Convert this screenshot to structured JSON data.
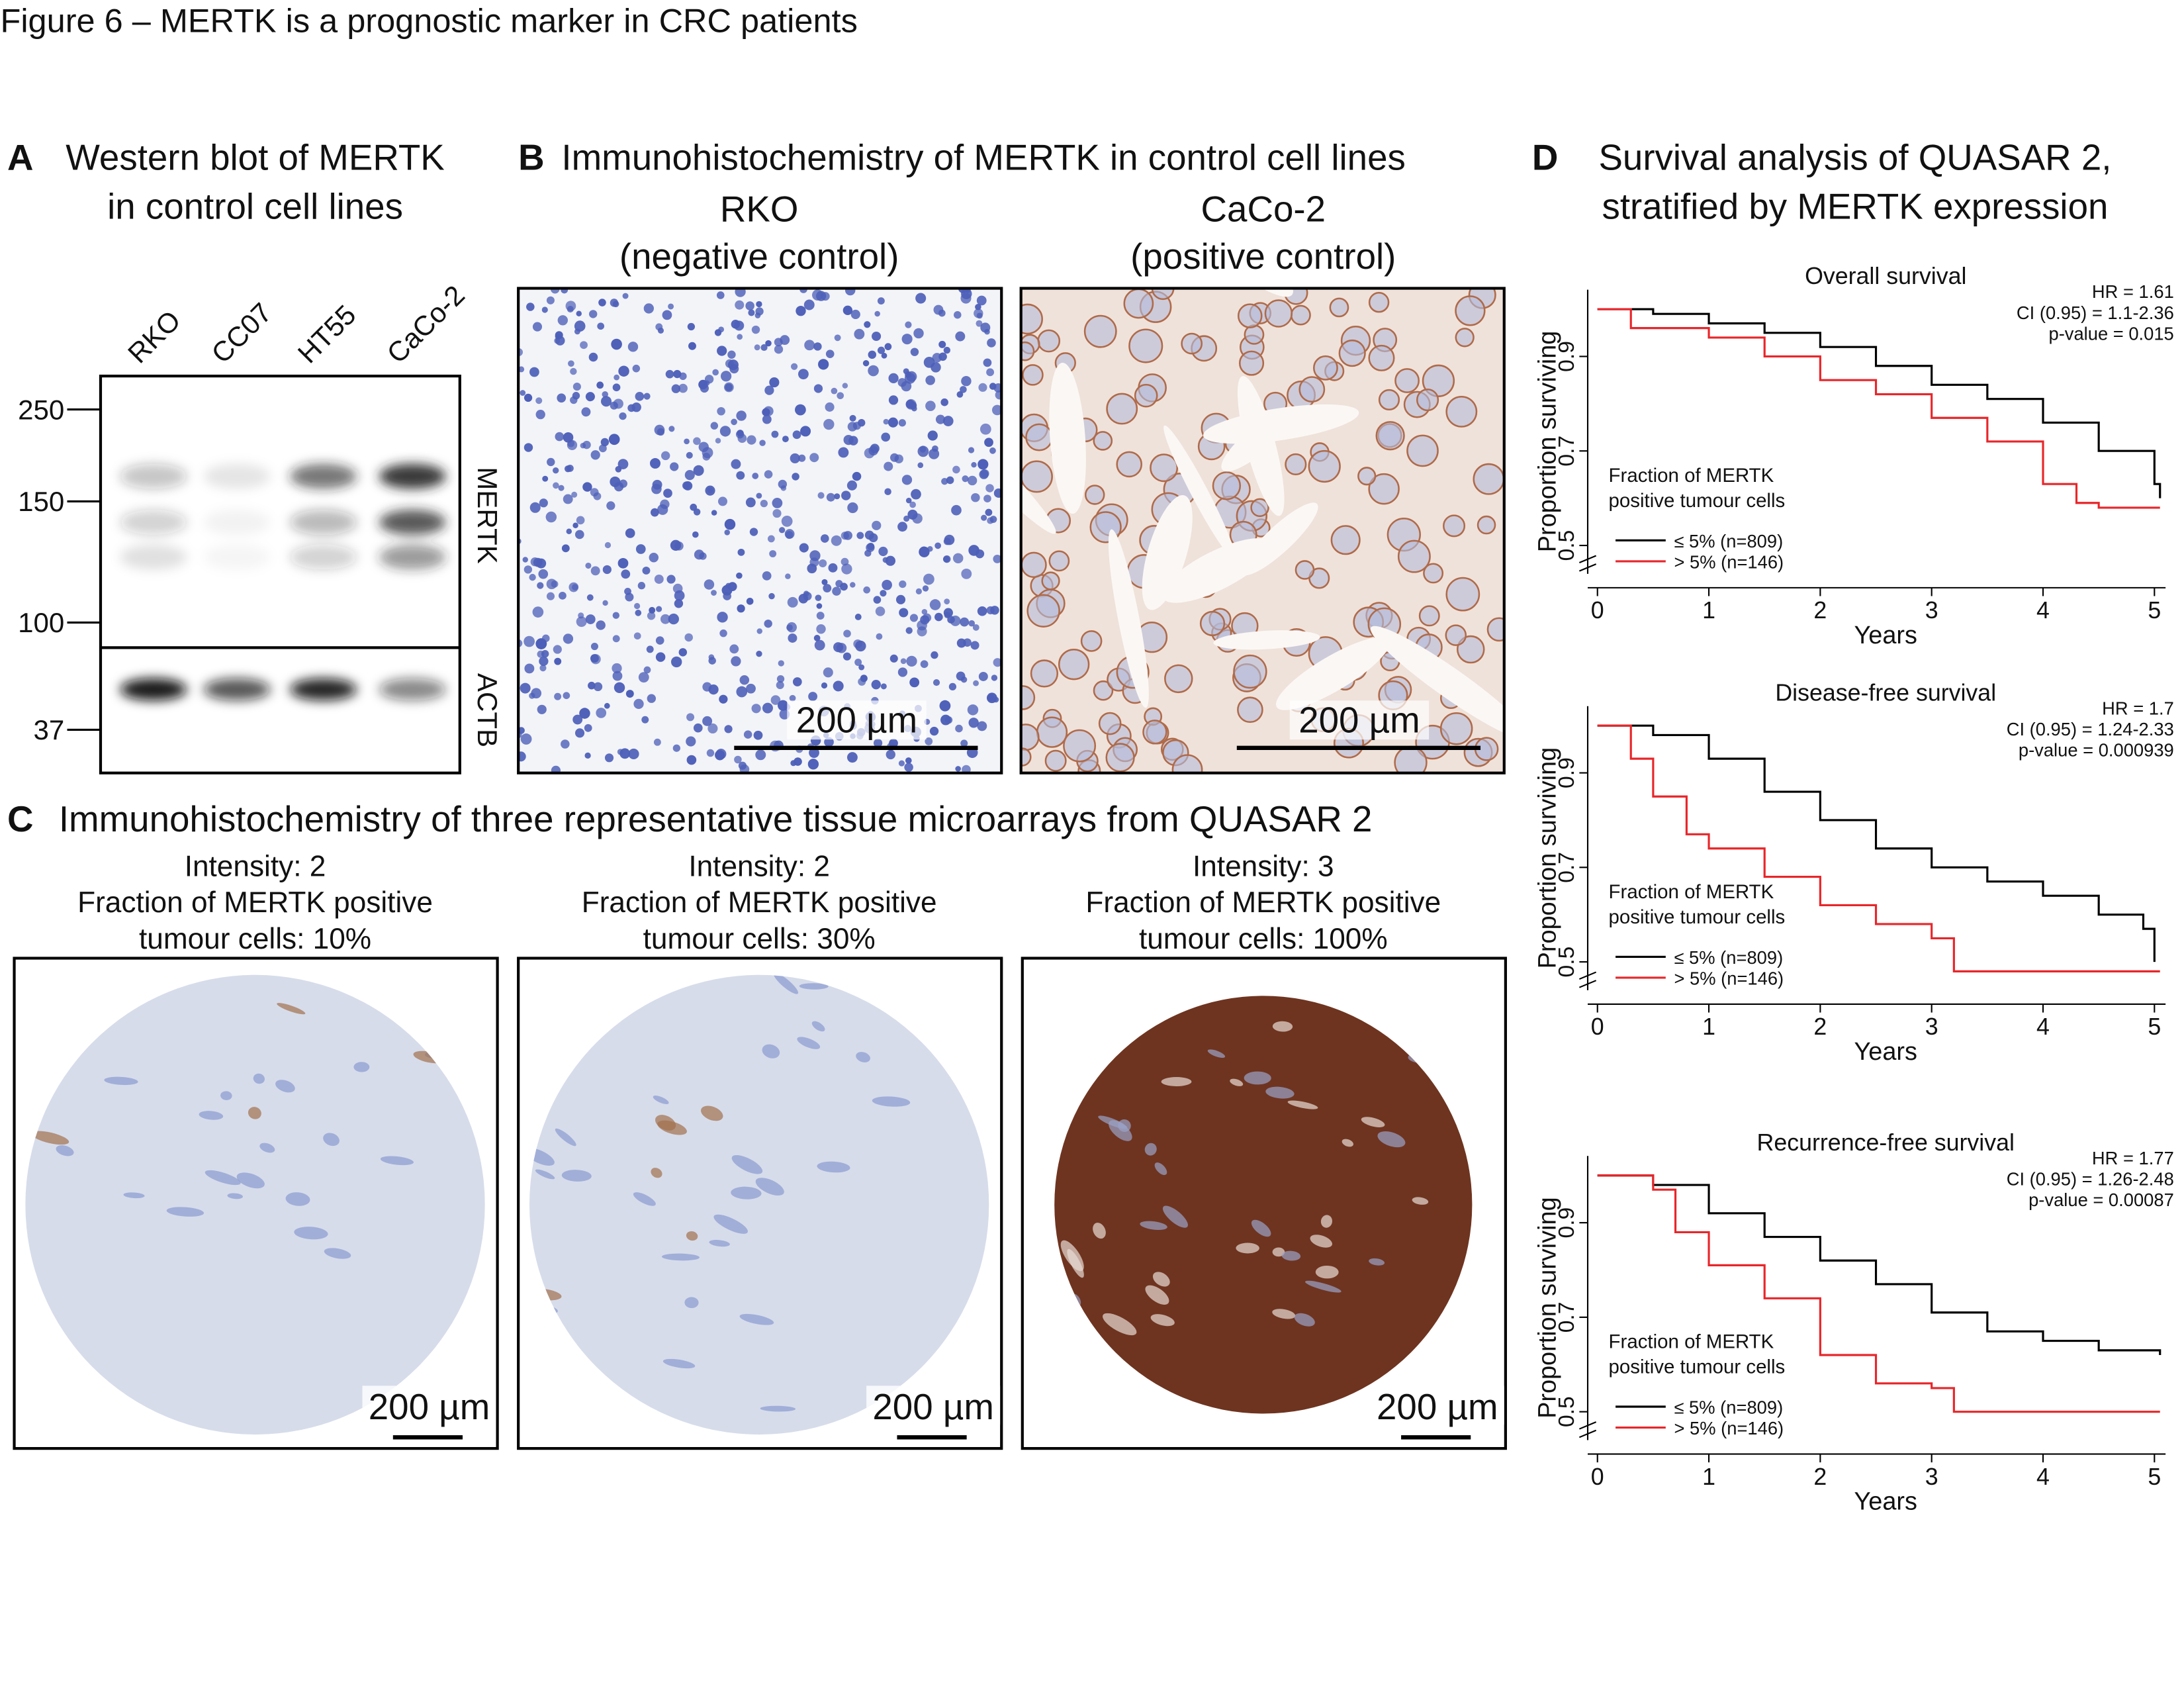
{
  "title": "Figure 6 – MERTK is a prognostic marker in CRC patients",
  "panel_a": {
    "letter": "A",
    "title_lines": [
      "Western blot of MERTK",
      "in control cell lines"
    ],
    "lanes": [
      "RKO",
      "CC07",
      "HT55",
      "CaCo-2"
    ],
    "markers": [
      250,
      150,
      100,
      37
    ],
    "blots": [
      "MERTK",
      "ACTB"
    ]
  },
  "panel_b": {
    "letter": "B",
    "title": "Immunohistochemistry of MERTK in control cell lines",
    "images": [
      {
        "label_lines": [
          "RKO",
          "(negative control)"
        ],
        "scale": "200 µm"
      },
      {
        "label_lines": [
          "CaCo-2",
          "(positive control)"
        ],
        "scale": "200 µm"
      }
    ]
  },
  "panel_c": {
    "letter": "C",
    "title": "Immunohistochemistry of three representative tissue microarrays from QUASAR 2",
    "images": [
      {
        "label_lines": [
          "Intensity: 2",
          "Fraction of MERTK positive",
          "tumour cells: 10%"
        ],
        "scale": "200 µm"
      },
      {
        "label_lines": [
          "Intensity: 2",
          "Fraction of MERTK positive",
          "tumour cells: 30%"
        ],
        "scale": "200 µm"
      },
      {
        "label_lines": [
          "Intensity: 3",
          "Fraction of MERTK positive",
          "tumour cells: 100%"
        ],
        "scale": "200 µm"
      }
    ]
  },
  "panel_d": {
    "letter": "D",
    "title_lines": [
      "Survival analysis of QUASAR 2,",
      "stratified by MERTK expression"
    ]
  },
  "chart_data": [
    {
      "type": "line",
      "title": "Overall survival",
      "xlabel": "Years",
      "ylabel": "Proportion surviving",
      "xlim": [
        0,
        5.1
      ],
      "ylim": [
        0.44,
        1.0
      ],
      "xticks": [
        0,
        1,
        2,
        3,
        4,
        5
      ],
      "yticks": [
        0.5,
        0.7,
        0.9
      ],
      "annotations": [
        "HR = 1.61",
        "CI (0.95) = 1.1-2.36",
        "p-value = 0.015"
      ],
      "legend_title_lines": [
        "Fraction of MERTK",
        "positive tumour cells"
      ],
      "series": [
        {
          "name": "≤ 5% (n=809)",
          "color": "#000000",
          "x": [
            0,
            0.5,
            1,
            1.5,
            2,
            2.5,
            3,
            3.5,
            4,
            4.5,
            5,
            5.05
          ],
          "values": [
            1.0,
            0.99,
            0.97,
            0.95,
            0.92,
            0.88,
            0.84,
            0.81,
            0.76,
            0.7,
            0.63,
            0.6
          ]
        },
        {
          "name": "> 5% (n=146)",
          "color": "#e8262a",
          "x": [
            0,
            0.3,
            1,
            1.5,
            2,
            2.5,
            3,
            3.5,
            4,
            4.3,
            4.5,
            5.05
          ],
          "values": [
            1.0,
            0.96,
            0.94,
            0.9,
            0.85,
            0.82,
            0.77,
            0.72,
            0.63,
            0.59,
            0.58,
            0.58
          ]
        }
      ]
    },
    {
      "type": "line",
      "title": "Disease-free survival",
      "xlabel": "Years",
      "ylabel": "Proportion surviving",
      "xlim": [
        0,
        5.1
      ],
      "ylim": [
        0.44,
        1.0
      ],
      "xticks": [
        0,
        1,
        2,
        3,
        4,
        5
      ],
      "yticks": [
        0.5,
        0.7,
        0.9
      ],
      "annotations": [
        "HR = 1.7",
        "CI (0.95) = 1.24-2.33",
        "p-value = 0.000939"
      ],
      "legend_title_lines": [
        "Fraction of MERTK",
        "positive tumour cells"
      ],
      "series": [
        {
          "name": "≤ 5% (n=809)",
          "color": "#000000",
          "x": [
            0,
            0.5,
            1,
            1.5,
            2,
            2.5,
            3,
            3.5,
            4,
            4.5,
            4.9,
            5
          ],
          "values": [
            1.0,
            0.98,
            0.93,
            0.86,
            0.8,
            0.74,
            0.7,
            0.67,
            0.64,
            0.6,
            0.57,
            0.5
          ]
        },
        {
          "name": "> 5% (n=146)",
          "color": "#e8262a",
          "x": [
            0,
            0.3,
            0.5,
            0.8,
            1,
            1.5,
            2,
            2.5,
            3,
            3.2,
            5.05
          ],
          "values": [
            1.0,
            0.93,
            0.85,
            0.77,
            0.74,
            0.68,
            0.62,
            0.58,
            0.55,
            0.48,
            0.48
          ]
        }
      ]
    },
    {
      "type": "line",
      "title": "Recurrence-free survival",
      "xlabel": "Years",
      "ylabel": "Proportion surviving",
      "xlim": [
        0,
        5.1
      ],
      "ylim": [
        0.44,
        1.0
      ],
      "xticks": [
        0,
        1,
        2,
        3,
        4,
        5
      ],
      "yticks": [
        0.5,
        0.7,
        0.9
      ],
      "annotations": [
        "HR = 1.77",
        "CI (0.95) = 1.26-2.48",
        "p-value = 0.00087"
      ],
      "legend_title_lines": [
        "Fraction of MERTK",
        "positive tumour cells"
      ],
      "series": [
        {
          "name": "≤ 5% (n=809)",
          "color": "#000000",
          "x": [
            0,
            0.5,
            1,
            1.5,
            2,
            2.5,
            3,
            3.5,
            4,
            4.5,
            5.05
          ],
          "values": [
            1.0,
            0.98,
            0.92,
            0.87,
            0.82,
            0.77,
            0.71,
            0.67,
            0.65,
            0.63,
            0.62
          ]
        },
        {
          "name": "> 5% (n=146)",
          "color": "#e8262a",
          "x": [
            0,
            0.5,
            0.7,
            1,
            1.5,
            2,
            2.5,
            3,
            3.2,
            5.05
          ],
          "values": [
            1.0,
            0.97,
            0.88,
            0.81,
            0.74,
            0.62,
            0.56,
            0.55,
            0.5,
            0.5
          ]
        }
      ]
    }
  ]
}
